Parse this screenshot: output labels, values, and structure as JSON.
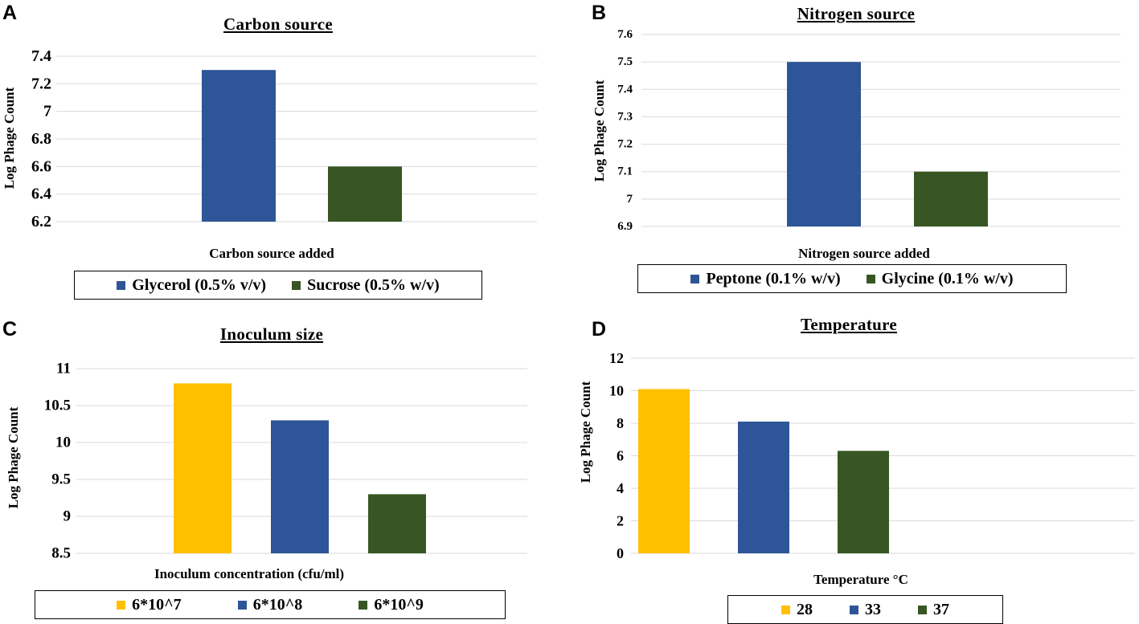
{
  "colors": {
    "blue": "#2e5597",
    "green": "#375623",
    "gold": "#ffc000",
    "grid": "#d9d9d9"
  },
  "chart_data": [
    {
      "panel": "A",
      "type": "bar",
      "title": "Carbon source",
      "xlabel": "Carbon source added",
      "ylabel": "Log Phage Count",
      "ylim": [
        6.2,
        7.4
      ],
      "yticks": [
        "6.2",
        "6.4",
        "6.6",
        "6.8",
        "7",
        "7.2",
        "7.4"
      ],
      "grid": true,
      "legend_position": "bottom",
      "series": [
        {
          "name": "Glycerol (0.5% v/v)",
          "value": 7.3,
          "color": "#2e5597"
        },
        {
          "name": "Sucrose (0.5% w/v)",
          "value": 6.6,
          "color": "#375623"
        }
      ]
    },
    {
      "panel": "B",
      "type": "bar",
      "title": "Nitrogen source",
      "xlabel": "Nitrogen source added",
      "ylabel": "Log Phage Count",
      "ylim": [
        6.9,
        7.6
      ],
      "yticks": [
        "6.9",
        "7",
        "7.1",
        "7.2",
        "7.3",
        "7.4",
        "7.5",
        "7.6"
      ],
      "grid": true,
      "legend_position": "bottom",
      "series": [
        {
          "name": "Peptone (0.1% w/v)",
          "value": 7.5,
          "color": "#2e5597"
        },
        {
          "name": "Glycine (0.1% w/v)",
          "value": 7.1,
          "color": "#375623"
        }
      ]
    },
    {
      "panel": "C",
      "type": "bar",
      "title": "Inoculum size",
      "xlabel": "Inoculum concentration (cfu/ml)",
      "ylabel": "Log Phage Count",
      "ylim": [
        8.5,
        11
      ],
      "yticks": [
        "8.5",
        "9",
        "9.5",
        "10",
        "10.5",
        "11"
      ],
      "grid": true,
      "legend_position": "bottom",
      "series": [
        {
          "name": "6*10^7",
          "value": 10.8,
          "color": "#ffc000"
        },
        {
          "name": "6*10^8",
          "value": 10.3,
          "color": "#2e5597"
        },
        {
          "name": "6*10^9",
          "value": 9.3,
          "color": "#375623"
        }
      ]
    },
    {
      "panel": "D",
      "type": "bar",
      "title": "Temperature",
      "xlabel": "Temperature °C",
      "ylabel": "Log Phage Count",
      "ylim": [
        0,
        12
      ],
      "yticks": [
        "0",
        "2",
        "4",
        "6",
        "8",
        "10",
        "12"
      ],
      "grid": true,
      "legend_position": "bottom",
      "series": [
        {
          "name": "28",
          "value": 10.1,
          "color": "#ffc000"
        },
        {
          "name": "33",
          "value": 8.1,
          "color": "#2e5597"
        },
        {
          "name": "37",
          "value": 6.3,
          "color": "#375623"
        }
      ]
    }
  ]
}
